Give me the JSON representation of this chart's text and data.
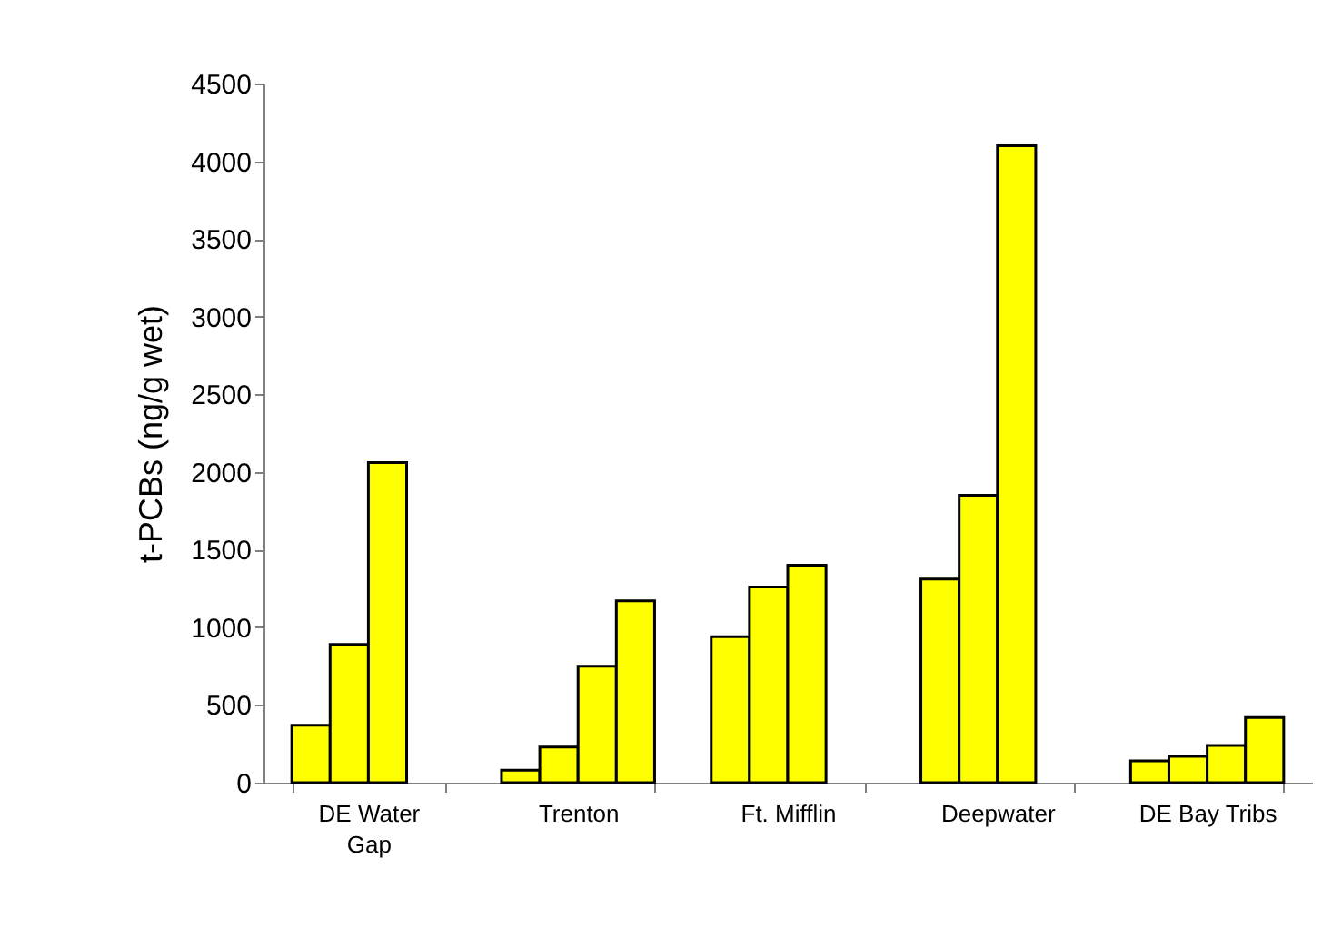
{
  "chart_data": {
    "type": "bar",
    "ylabel": "t-PCBs (ng/g wet)",
    "categories": [
      "DE Water\nGap",
      "Trenton",
      "Ft. Mifflin",
      "Deepwater",
      "DE Bay Tribs"
    ],
    "series": [
      {
        "color": "#ffff00",
        "values": [
          370,
          80,
          940,
          1310,
          140
        ]
      },
      {
        "color": "#ffff00",
        "values": [
          890,
          230,
          1260,
          1850,
          170
        ]
      },
      {
        "color": "#ffff00",
        "values": [
          2060,
          750,
          1400,
          4100,
          240
        ]
      },
      {
        "color": "#ffff00",
        "values": [
          null,
          1170,
          null,
          null,
          420
        ]
      }
    ],
    "ylim": [
      0,
      4500
    ],
    "yticks": [
      0,
      500,
      1000,
      1500,
      2000,
      2500,
      3000,
      3500,
      4000,
      4500
    ],
    "grid": false,
    "legend": false
  }
}
